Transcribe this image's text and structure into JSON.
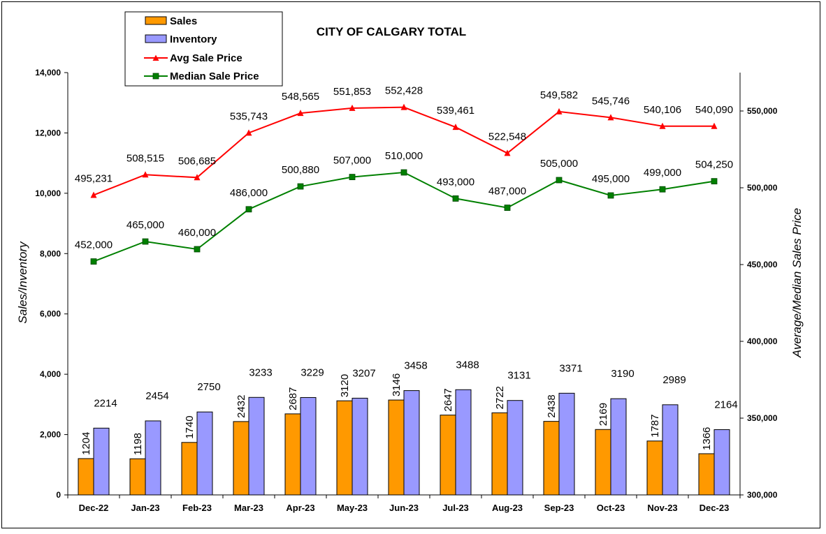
{
  "chart_data": {
    "type": "bar",
    "title": "CITY OF CALGARY TOTAL",
    "ylabel": "Sales/Inventory",
    "y2label": "Average/Median Sales Price",
    "ylim": [
      0,
      14000
    ],
    "y2lim": [
      300000,
      575000
    ],
    "yticks": [
      "0",
      "2,000",
      "4,000",
      "6,000",
      "8,000",
      "10,000",
      "12,000",
      "14,000"
    ],
    "y2ticks": [
      "300,000",
      "350,000",
      "400,000",
      "450,000",
      "500,000",
      "550,000"
    ],
    "grid": false,
    "legend_position": "top-left",
    "categories": [
      "Dec-22",
      "Jan-23",
      "Feb-23",
      "Mar-23",
      "Apr-23",
      "May-23",
      "Jun-23",
      "Jul-23",
      "Aug-23",
      "Sep-23",
      "Oct-23",
      "Nov-23",
      "Dec-23"
    ],
    "series": [
      {
        "name": "Sales",
        "type": "bar",
        "axis": "left",
        "color": "#FF9900",
        "values": [
          1204,
          1198,
          1740,
          2432,
          2687,
          3120,
          3146,
          2647,
          2722,
          2438,
          2169,
          1787,
          1366
        ],
        "labels": [
          "1204",
          "1198",
          "1740",
          "2432",
          "2687",
          "3120",
          "3146",
          "2647",
          "2722",
          "2438",
          "2169",
          "1787",
          "1366"
        ]
      },
      {
        "name": "Inventory",
        "type": "bar",
        "axis": "left",
        "color": "#9999FF",
        "values": [
          2214,
          2454,
          2750,
          3233,
          3229,
          3207,
          3458,
          3488,
          3131,
          3371,
          3190,
          2989,
          2164
        ],
        "labels": [
          "2214",
          "2454",
          "2750",
          "3233",
          "3229",
          "3207",
          "3458",
          "3488",
          "3131",
          "3371",
          "3190",
          "2989",
          "2164"
        ]
      },
      {
        "name": "Avg Sale Price",
        "type": "line",
        "axis": "right",
        "color": "#FF0000",
        "marker": "triangle",
        "values": [
          495231,
          508515,
          506685,
          535743,
          548565,
          551853,
          552428,
          539461,
          522548,
          549582,
          545746,
          540106,
          540090
        ],
        "labels": [
          "495,231",
          "508,515",
          "506,685",
          "535,743",
          "548,565",
          "551,853",
          "552,428",
          "539,461",
          "522,548",
          "549,582",
          "545,746",
          "540,106",
          "540,090"
        ]
      },
      {
        "name": "Median Sale Price",
        "type": "line",
        "axis": "right",
        "color": "#008000",
        "marker": "square",
        "values": [
          452000,
          465000,
          460000,
          486000,
          500880,
          507000,
          510000,
          493000,
          487000,
          505000,
          495000,
          499000,
          504250
        ],
        "labels": [
          "452,000",
          "465,000",
          "460,000",
          "486,000",
          "500,880",
          "507,000",
          "510,000",
          "493,000",
          "487,000",
          "505,000",
          "495,000",
          "499,000",
          "504,250"
        ]
      }
    ]
  }
}
